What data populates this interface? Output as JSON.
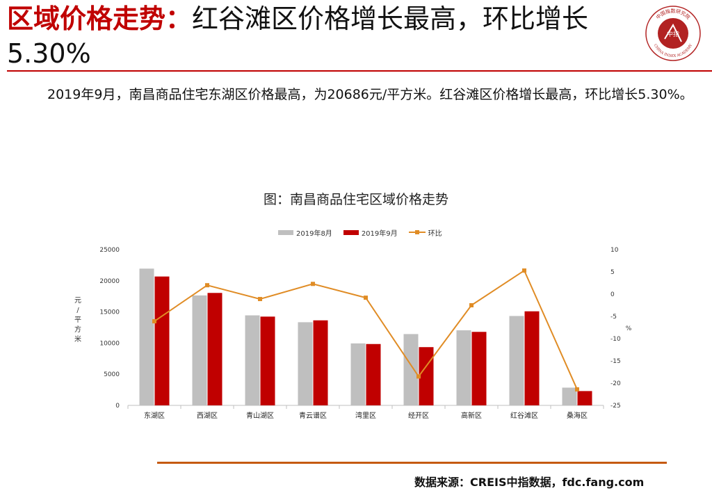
{
  "header": {
    "title_accent": "区域价格走势：",
    "title_rest": "红谷滩区价格增长最高，环比增长5.30%"
  },
  "logo": {
    "top_text": "中国指数研究院",
    "center_text": "中指",
    "bottom_text": "CHINA INDEX ACADEMY",
    "color": "#b22222"
  },
  "intro": "2019年9月，南昌商品住宅东湖区价格最高，为20686元/平方米。红谷滩区价格增长最高，环比增长5.30%。",
  "chart_title": "图：南昌商品住宅区域价格走势",
  "chart_data": {
    "type": "bar",
    "categories": [
      "东湖区",
      "西湖区",
      "青山湖区",
      "青云谱区",
      "湾里区",
      "经开区",
      "高新区",
      "红谷滩区",
      "桑海区"
    ],
    "series": [
      {
        "name": "2019年8月",
        "type": "bar",
        "color": "#bfbfbf",
        "axis": "left",
        "values": [
          21950,
          17650,
          14450,
          13350,
          9950,
          11450,
          12050,
          14350,
          2850
        ]
      },
      {
        "name": "2019年9月",
        "type": "bar",
        "color": "#c00000",
        "axis": "left",
        "values": [
          20686,
          18050,
          14250,
          13650,
          9850,
          9350,
          11800,
          15100,
          2300
        ]
      },
      {
        "name": "环比",
        "type": "line",
        "color": "#e08c25",
        "axis": "right",
        "values": [
          -6.1,
          2.0,
          -1.1,
          2.3,
          -0.8,
          -18.5,
          -2.5,
          5.3,
          -21.4
        ]
      }
    ],
    "y_left": {
      "label": "元/平方米",
      "min": 0,
      "max": 25000,
      "ticks": [
        "0",
        "5000",
        "10000",
        "15000",
        "20000",
        "25000"
      ]
    },
    "y_right": {
      "label": "%",
      "min": -25,
      "max": 10,
      "ticks": [
        "-25",
        "-20",
        "-15",
        "-10",
        "-5",
        "0",
        "5",
        "10"
      ]
    },
    "legend_position": "top",
    "grid": false
  },
  "source": "数据来源：CREIS中指数据，fdc.fang.com"
}
